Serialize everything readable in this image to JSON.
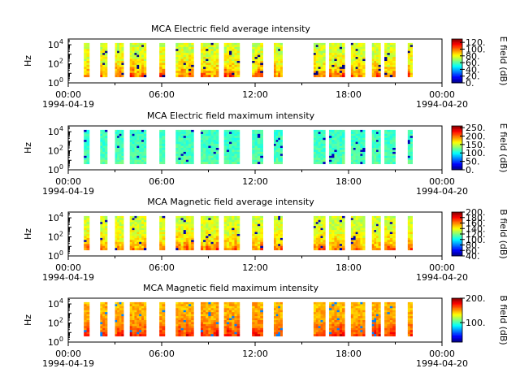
{
  "chart_data": [
    {
      "type": "heatmap",
      "title": "MCA  Electric field average intensity",
      "ylabel": "Hz",
      "y_scale": "log",
      "ylim": [
        1,
        40000
      ],
      "y_ticks": [
        {
          "exp": "0",
          "value": 1
        },
        {
          "exp": "2",
          "value": 100
        },
        {
          "exp": "4",
          "value": 10000
        }
      ],
      "x_ticks": [
        "00:00",
        "06:00",
        "12:00",
        "18:00",
        "00:00"
      ],
      "x_tick_hours": [
        0,
        6,
        12,
        18,
        24
      ],
      "date_start": "1994-04-19",
      "date_end": "1994-04-20",
      "colorbar": {
        "label": "E field (dB)",
        "min": 0,
        "max": 130,
        "ticks": [
          "0.",
          "20.",
          "40.",
          "60.",
          "80.",
          "100.",
          "120."
        ],
        "tick_values": [
          0,
          20,
          40,
          60,
          80,
          100,
          120
        ]
      },
      "intensity_low": 40,
      "intensity_high": 115,
      "low_freq_enhancement": 0.55
    },
    {
      "type": "heatmap",
      "title": "MCA  Electric field maximum intensity",
      "ylabel": "Hz",
      "y_scale": "log",
      "ylim": [
        1,
        40000
      ],
      "y_ticks": [
        {
          "exp": "0",
          "value": 1
        },
        {
          "exp": "2",
          "value": 100
        },
        {
          "exp": "4",
          "value": 10000
        }
      ],
      "x_ticks": [
        "00:00",
        "06:00",
        "12:00",
        "18:00",
        "00:00"
      ],
      "x_tick_hours": [
        0,
        6,
        12,
        18,
        24
      ],
      "date_start": "1994-04-19",
      "date_end": "1994-04-20",
      "colorbar": {
        "label": "E field (dB)",
        "min": 0,
        "max": 260,
        "ticks": [
          "0.",
          "50.",
          "100.",
          "150.",
          "200.",
          "250."
        ],
        "tick_values": [
          0,
          50,
          100,
          150,
          200,
          250
        ]
      },
      "intensity_low": 70,
      "intensity_high": 160,
      "low_freq_enhancement": 0.15
    },
    {
      "type": "heatmap",
      "title": "MCA  Magnetic field average intensity",
      "ylabel": "Hz",
      "y_scale": "log",
      "ylim": [
        1,
        40000
      ],
      "y_ticks": [
        {
          "exp": "0",
          "value": 1
        },
        {
          "exp": "2",
          "value": 100
        },
        {
          "exp": "4",
          "value": 10000
        }
      ],
      "x_ticks": [
        "00:00",
        "06:00",
        "12:00",
        "18:00",
        "00:00"
      ],
      "x_tick_hours": [
        0,
        6,
        12,
        18,
        24
      ],
      "date_start": "1994-04-19",
      "date_end": "1994-04-20",
      "colorbar": {
        "label": "B field (dB)",
        "min": 40,
        "max": 200,
        "ticks": [
          "40.",
          "60.",
          "80.",
          "100.",
          "120.",
          "140.",
          "160.",
          "180.",
          "200."
        ],
        "tick_values": [
          40,
          60,
          80,
          100,
          120,
          140,
          160,
          180,
          200
        ]
      },
      "intensity_low": 95,
      "intensity_high": 175,
      "low_freq_enhancement": 0.6
    },
    {
      "type": "heatmap",
      "title": "MCA  Magnetic field maximum intensity",
      "ylabel": "Hz",
      "y_scale": "log",
      "ylim": [
        1,
        40000
      ],
      "y_ticks": [
        {
          "exp": "0",
          "value": 1
        },
        {
          "exp": "2",
          "value": 100
        },
        {
          "exp": "4",
          "value": 10000
        }
      ],
      "x_ticks": [
        "00:00",
        "06:00",
        "12:00",
        "18:00",
        "00:00"
      ],
      "x_tick_hours": [
        0,
        6,
        12,
        18,
        24
      ],
      "date_start": "1994-04-19",
      "date_end": "1994-04-20",
      "colorbar": {
        "label": "B field (dB)",
        "min": 20,
        "max": 200,
        "ticks": [
          "100.",
          "200."
        ],
        "tick_values": [
          100,
          200
        ]
      },
      "intensity_low": 110,
      "intensity_high": 185,
      "low_freq_enhancement": 0.6
    }
  ],
  "data_segments_hours": [
    [
      1.0,
      1.35
    ],
    [
      2.05,
      2.5
    ],
    [
      3.0,
      3.55
    ],
    [
      3.95,
      5.0
    ],
    [
      5.85,
      6.2
    ],
    [
      6.9,
      8.05
    ],
    [
      8.5,
      9.65
    ],
    [
      10.0,
      11.0
    ],
    [
      11.8,
      12.5
    ],
    [
      13.2,
      13.75
    ],
    [
      15.75,
      16.5
    ],
    [
      16.75,
      17.75
    ],
    [
      18.15,
      19.05
    ],
    [
      19.5,
      20.05
    ],
    [
      20.3,
      21.0
    ],
    [
      21.8,
      22.1
    ]
  ]
}
